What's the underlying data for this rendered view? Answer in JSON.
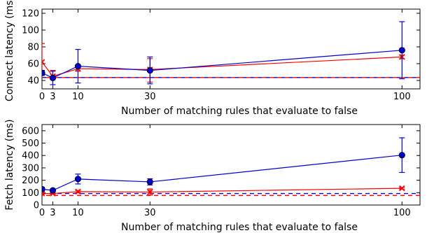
{
  "chart_data": [
    {
      "type": "line",
      "xlabel": "Number of matching rules that evaluate to false",
      "ylabel": "Connect latency (ms)",
      "xlim": [
        0,
        105
      ],
      "ylim": [
        30,
        125
      ],
      "xticks": [
        0,
        3,
        10,
        30,
        100
      ],
      "yticks": [
        40,
        60,
        80,
        100,
        120
      ],
      "grid": false,
      "x": [
        0,
        3,
        10,
        30,
        100
      ],
      "series": [
        {
          "color": "#0000cc",
          "marker": "circle",
          "linestyle": "solid",
          "values": [
            49,
            43,
            57,
            52,
            76
          ],
          "errors": [
            [
              3,
              3
            ],
            [
              8,
              8
            ],
            [
              20,
              20
            ],
            [
              16,
              16
            ],
            [
              34,
              34
            ]
          ]
        },
        {
          "color": "#ff0000",
          "marker": "x",
          "linestyle": "solid",
          "values": [
            62,
            45,
            54,
            53,
            68
          ],
          "errors": [
            [
              15,
              22
            ],
            [
              4,
              7
            ],
            [
              3,
              3
            ],
            [
              15,
              13
            ],
            [
              2,
              2
            ]
          ]
        },
        {
          "color": "#0000cc",
          "marker": "none",
          "linestyle": "dashed",
          "constant": 43.5
        },
        {
          "color": "#ff0000",
          "marker": "none",
          "linestyle": "dashed",
          "constant": 43.5
        }
      ]
    },
    {
      "type": "line",
      "xlabel": "Number of matching rules that evaluate to false",
      "ylabel": "Fetch latency (ms)",
      "xlim": [
        0,
        105
      ],
      "ylim": [
        0,
        650
      ],
      "xticks": [
        0,
        3,
        10,
        30,
        100
      ],
      "yticks": [
        0,
        100,
        200,
        300,
        400,
        500,
        600
      ],
      "grid": false,
      "x": [
        0,
        3,
        10,
        30,
        100
      ],
      "series": [
        {
          "color": "#0000cc",
          "marker": "circle",
          "linestyle": "solid",
          "values": [
            128,
            118,
            210,
            187,
            403
          ],
          "errors": [
            [
              15,
              15
            ],
            [
              10,
              10
            ],
            [
              40,
              40
            ],
            [
              25,
              25
            ],
            [
              140,
              140
            ]
          ]
        },
        {
          "color": "#ff0000",
          "marker": "x",
          "linestyle": "solid",
          "values": [
            93,
            93,
            108,
            105,
            135
          ],
          "errors": [
            [
              5,
              5
            ],
            [
              5,
              5
            ],
            [
              10,
              10
            ],
            [
              25,
              25
            ],
            [
              7,
              7
            ]
          ]
        },
        {
          "color": "#0000cc",
          "marker": "none",
          "linestyle": "dashed",
          "constant": 93
        },
        {
          "color": "#ff0000",
          "marker": "none",
          "linestyle": "dashed",
          "constant": 77
        }
      ]
    }
  ]
}
